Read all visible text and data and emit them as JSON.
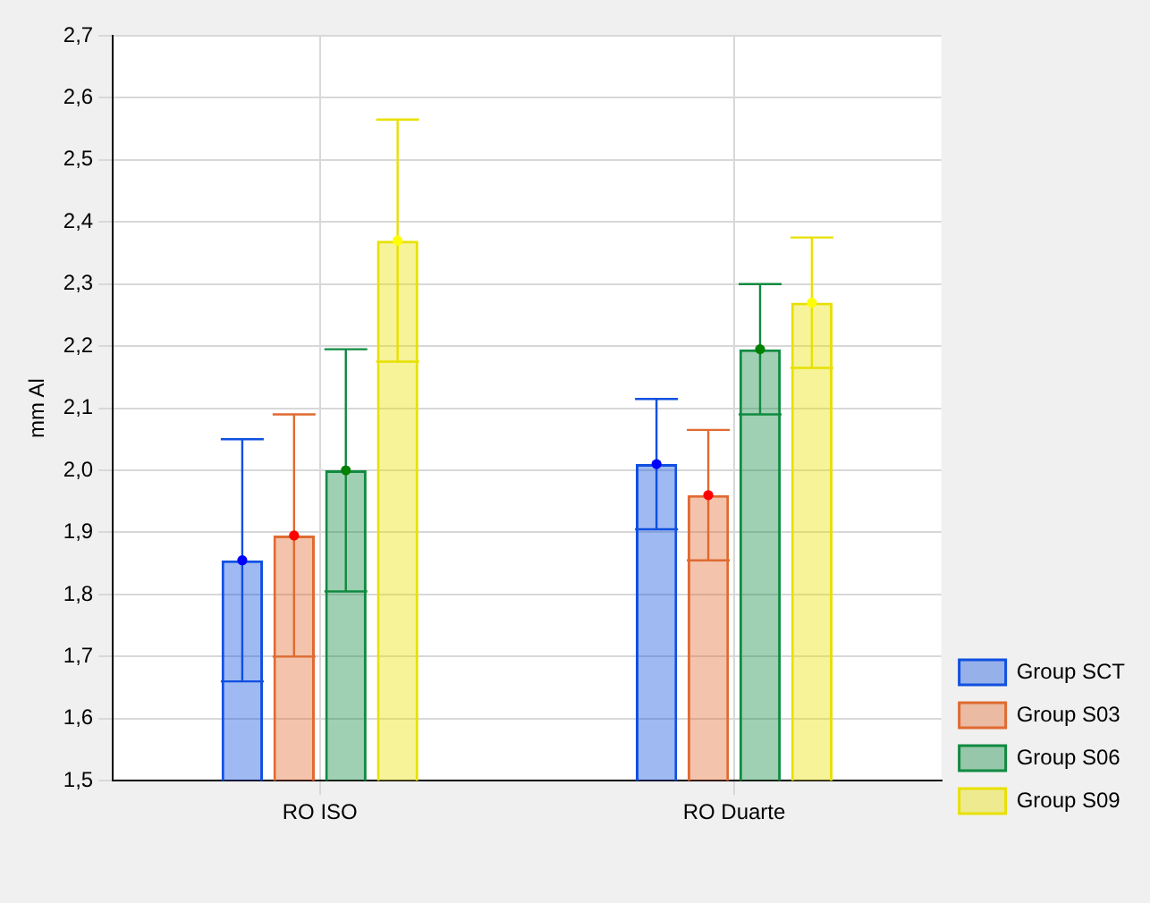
{
  "chart_data": {
    "type": "bar",
    "ylabel": "mm Al",
    "categories": [
      "RO ISO",
      "RO Duarte"
    ],
    "series": [
      {
        "name": "Group SCT",
        "color": "#1050e0",
        "values": [
          1.855,
          2.01
        ],
        "errors": [
          0.195,
          0.105
        ]
      },
      {
        "name": "Group S03",
        "color": "#e06a30",
        "values": [
          1.895,
          1.96
        ],
        "errors": [
          0.195,
          0.105
        ]
      },
      {
        "name": "Group S06",
        "color": "#108a40",
        "values": [
          2.0,
          2.195
        ],
        "errors": [
          0.195,
          0.105
        ]
      },
      {
        "name": "Group S09",
        "color": "#e8e000",
        "values": [
          2.37,
          2.27
        ],
        "errors": [
          0.195,
          0.105
        ]
      },
      {
        "type": "scatter",
        "color": "#0000ff",
        "x": [
          "RO ISO",
          "RO Duarte"
        ],
        "values": [
          1.855,
          2.01
        ]
      },
      {
        "type": "scatter",
        "color": "#ff0000",
        "x": [
          "RO ISO",
          "RO Duarte"
        ],
        "values": [
          1.895,
          1.96
        ]
      },
      {
        "type": "scatter",
        "color": "#008000",
        "x": [
          "RO ISO",
          "RO Duarte"
        ],
        "values": [
          2.0,
          2.195
        ]
      },
      {
        "type": "scatter",
        "color": "#ffff00",
        "x": [
          "RO ISO",
          "RO Duarte"
        ],
        "values": [
          2.37,
          2.27
        ]
      }
    ],
    "ylim": [
      1.5,
      2.7
    ],
    "yticks": [
      {
        "value": 1.5,
        "label": "1,5"
      },
      {
        "value": 1.6,
        "label": "1,6"
      },
      {
        "value": 1.7,
        "label": "1,7"
      },
      {
        "value": 1.8,
        "label": "1,8"
      },
      {
        "value": 1.9,
        "label": "1,9"
      },
      {
        "value": 2.0,
        "label": "2,0"
      },
      {
        "value": 2.1,
        "label": "2,1"
      },
      {
        "value": 2.2,
        "label": "2,2"
      },
      {
        "value": 2.3,
        "label": "2,3"
      },
      {
        "value": 2.4,
        "label": "2,4"
      },
      {
        "value": 2.5,
        "label": "2,5"
      },
      {
        "value": 2.6,
        "label": "2,6"
      },
      {
        "value": 2.7,
        "label": "2,7"
      }
    ],
    "grid": true,
    "legend": "bottom right",
    "marker": "circle"
  }
}
